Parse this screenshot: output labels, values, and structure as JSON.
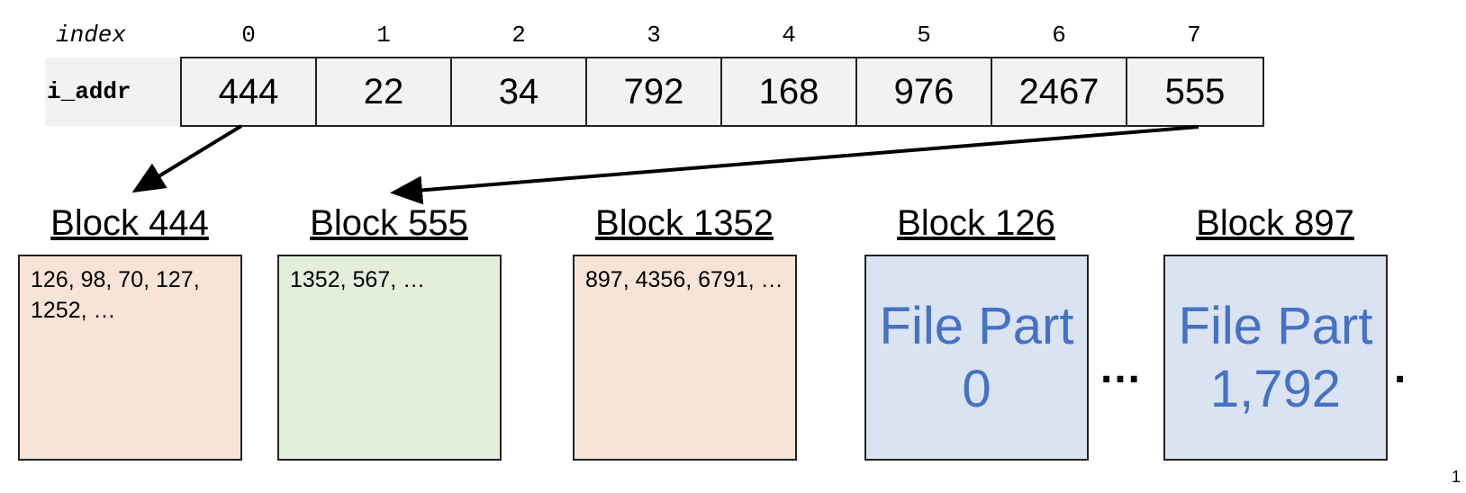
{
  "index_label": "index",
  "row_label": "i_addr",
  "indices": [
    "0",
    "1",
    "2",
    "3",
    "4",
    "5",
    "6",
    "7"
  ],
  "i_addr_values": [
    "444",
    "22",
    "34",
    "792",
    "168",
    "976",
    "2467",
    "555"
  ],
  "blocks": [
    {
      "title": "Block 444",
      "content": "126, 98, 70, 127, 1252, …",
      "kind": "pointer",
      "color": "#f8e4d6"
    },
    {
      "title": "Block 555",
      "content": "1352, 567, …",
      "kind": "pointer",
      "color": "#e3efdb"
    },
    {
      "title": "Block 1352",
      "content": "897, 4356, 6791, …",
      "kind": "pointer",
      "color": "#f8e4d6"
    },
    {
      "title": "Block 126",
      "line1": "File Part",
      "line2": "0",
      "kind": "data",
      "color": "#dae3f1"
    },
    {
      "title": "Block 897",
      "line1": "File Part",
      "line2": "1,792",
      "kind": "data",
      "color": "#dae3f1"
    }
  ],
  "ellipsis": "…",
  "ellipsis_right": ".",
  "page_number": "1"
}
